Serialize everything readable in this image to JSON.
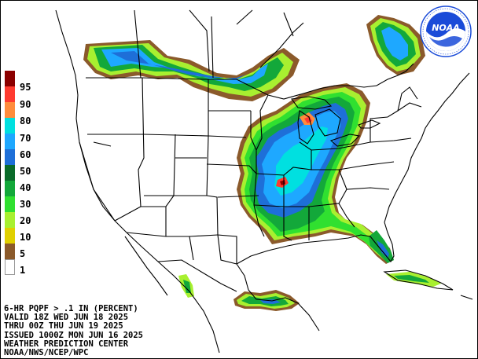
{
  "product": {
    "title_line": "6-HR PQPF > .1 IN (PERCENT)",
    "valid_line": "VALID 18Z WED JUN 18 2025",
    "thru_line": "THRU 00Z THU JUN 19 2025",
    "issued_line": "ISSUED 1000Z MON JUN 16 2025",
    "center_line": "WEATHER PREDICTION CENTER",
    "agency_line": "NOAA/NWS/NCEP/WPC"
  },
  "legend": {
    "entries": [
      {
        "label": "95",
        "color": "#8b0000"
      },
      {
        "label": "90",
        "color": "#ff3b30"
      },
      {
        "label": "80",
        "color": "#ff8c3c"
      },
      {
        "label": "70",
        "color": "#00e0e0"
      },
      {
        "label": "60",
        "color": "#1ea8ff"
      },
      {
        "label": "50",
        "color": "#1e6fd8"
      },
      {
        "label": "40",
        "color": "#0a6b2a"
      },
      {
        "label": "30",
        "color": "#13a83a"
      },
      {
        "label": "20",
        "color": "#30e030"
      },
      {
        "label": "10",
        "color": "#a8f030"
      },
      {
        "label": "5",
        "color": "#e0d000"
      },
      {
        "label": "1",
        "color": "#8b5a2b"
      },
      {
        "label": "",
        "color": "#ffffff"
      }
    ]
  },
  "logo": {
    "text": "NOAA",
    "ring_color": "#1a4bd8",
    "icon": "noaa-seal-icon"
  }
}
